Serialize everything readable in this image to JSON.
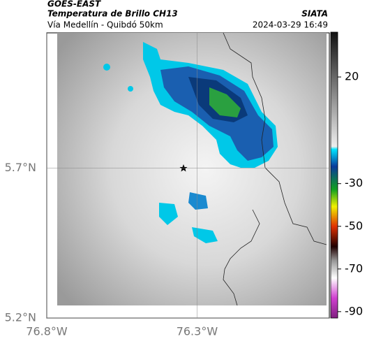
{
  "header": {
    "title": "GOES-EAST",
    "subtitle": "Temperatura de Brillo CH13",
    "source": "SIATA",
    "region": "Vía Medellín - Quibdó 50km",
    "timestamp": "2024-03-29 16:49"
  },
  "map": {
    "xlim": [
      -76.8,
      -75.86
    ],
    "ylim": [
      5.2,
      6.15
    ],
    "xticks": [
      {
        "value": -76.8,
        "label": "76.8°W"
      },
      {
        "value": -76.3,
        "label": "76.3°W"
      }
    ],
    "yticks": [
      {
        "value": 5.2,
        "label": "5.2°N"
      },
      {
        "value": 5.7,
        "label": "5.7°N"
      }
    ]
  },
  "colorbar": {
    "clim": [
      -93,
      41
    ],
    "ticks": [
      20,
      -30,
      -50,
      -70,
      -90
    ]
  }
}
